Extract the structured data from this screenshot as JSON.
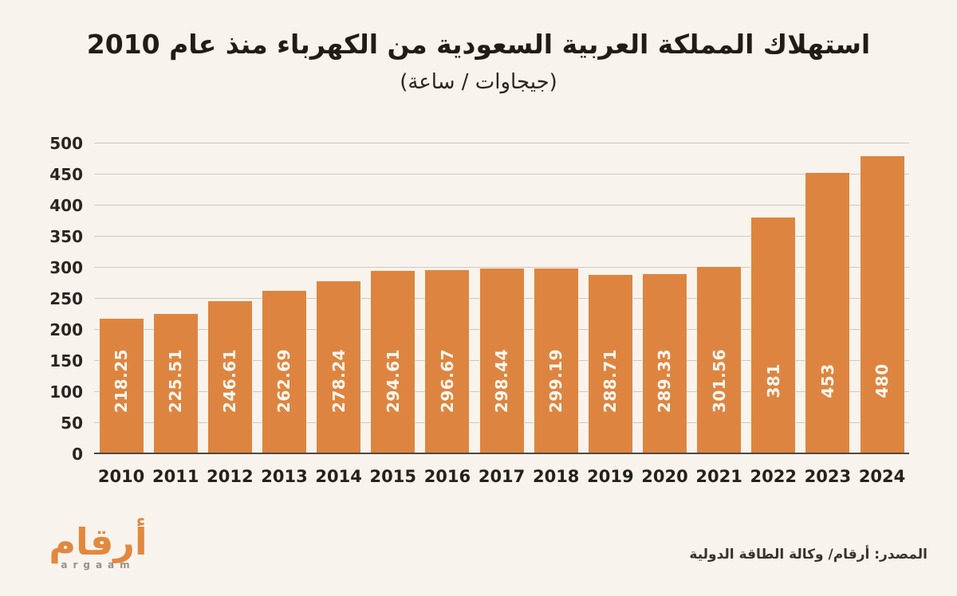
{
  "header": {
    "title": "استهلاك المملكة العربية السعودية من الكهرباء منذ عام 2010",
    "subtitle": "(جيجاوات / ساعة)"
  },
  "chart_data": {
    "type": "bar",
    "title": "استهلاك المملكة العربية السعودية من الكهرباء منذ عام 2010",
    "subtitle_units": "(جيجاوات / ساعة)",
    "categories": [
      "2010",
      "2011",
      "2012",
      "2013",
      "2014",
      "2015",
      "2016",
      "2017",
      "2018",
      "2019",
      "2020",
      "2021",
      "2022",
      "2023",
      "2024"
    ],
    "values": [
      218.25,
      225.51,
      246.61,
      262.69,
      278.24,
      294.61,
      296.67,
      298.44,
      299.19,
      288.71,
      289.33,
      301.56,
      381,
      453,
      480
    ],
    "value_labels": [
      "218.25",
      "225.51",
      "246.61",
      "262.69",
      "278.24",
      "294.61",
      "296.67",
      "298.44",
      "299.19",
      "288.71",
      "289.33",
      "301.56",
      "381",
      "453",
      "480"
    ],
    "xlabel": "",
    "ylabel": "",
    "ylim": [
      0,
      500
    ],
    "yticks": [
      0,
      50,
      100,
      150,
      200,
      250,
      300,
      350,
      400,
      450,
      500
    ],
    "grid": true,
    "legend": "none",
    "bar_color": "#DD8540",
    "value_label_color": "#FBF7F1"
  },
  "footer": {
    "logo_arabic": "أرقام",
    "logo_latin": "argaam",
    "source": "المصدر: أرقام/ وكالة الطاقة الدولية"
  },
  "colors": {
    "background": "#F8F4ED",
    "bar": "#DD8540",
    "gridline": "#CDC8C1",
    "axis_line": "#4E4944",
    "title_text": "#201C16",
    "logo_orange": "#E2883F"
  }
}
